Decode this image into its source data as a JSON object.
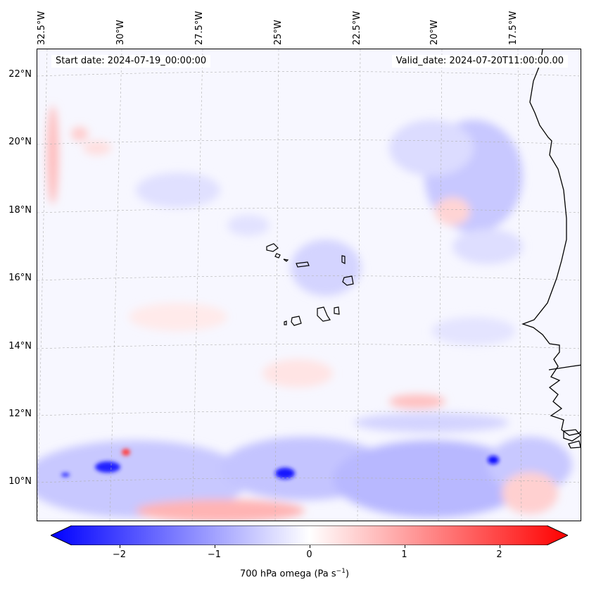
{
  "map": {
    "start_label": "Start date: 2024-07-19_00:00:00",
    "valid_label": "Valid_date: 2024-07-20T11:00:00.00",
    "lon_labels": [
      "32.5°W",
      "30°W",
      "27.5°W",
      "25°W",
      "22.5°W",
      "20°W",
      "17.5°W"
    ],
    "lat_labels": [
      "22°N",
      "20°N",
      "18°N",
      "16°N",
      "14°N",
      "12°N",
      "10°N"
    ],
    "field_colors": {
      "negative": "#0000ff",
      "neutral": "#ffffff",
      "positive": "#ff0000"
    }
  },
  "colorbar": {
    "label_text": "700 hPa omega (Pa s",
    "label_sup": "−1",
    "label_close": ")",
    "range": [
      -2.75,
      2.75
    ],
    "ticks": [
      "−2",
      "−1",
      "0",
      "1",
      "2"
    ],
    "tick_values": [
      -2,
      -1,
      0,
      1,
      2
    ]
  }
}
